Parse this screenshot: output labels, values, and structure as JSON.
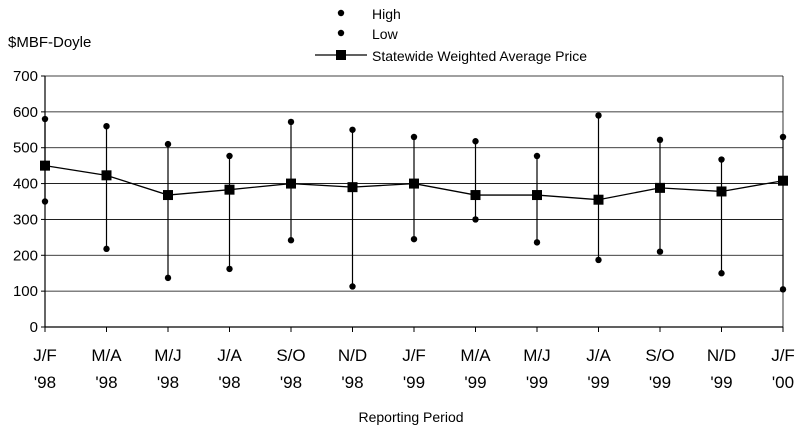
{
  "chart_data": {
    "type": "line",
    "ylabel": "$MBF-Doyle",
    "xlabel": "Reporting Period",
    "ylim": [
      0,
      700
    ],
    "yticks": [
      0,
      100,
      200,
      300,
      400,
      500,
      600,
      700
    ],
    "grid": true,
    "legend_position": "top-center",
    "categories": [
      {
        "line1": "J/F",
        "line2": "'98"
      },
      {
        "line1": "M/A",
        "line2": "'98"
      },
      {
        "line1": "M/J",
        "line2": "'98"
      },
      {
        "line1": "J/A",
        "line2": "'98"
      },
      {
        "line1": "S/O",
        "line2": "'98"
      },
      {
        "line1": "N/D",
        "line2": "'98"
      },
      {
        "line1": "J/F",
        "line2": "'99"
      },
      {
        "line1": "M/A",
        "line2": "'99"
      },
      {
        "line1": "M/J",
        "line2": "'99"
      },
      {
        "line1": "J/A",
        "line2": "'99"
      },
      {
        "line1": "S/O",
        "line2": "'99"
      },
      {
        "line1": "N/D",
        "line2": "'99"
      },
      {
        "line1": "J/F",
        "line2": "'00"
      }
    ],
    "series": [
      {
        "name": "High",
        "values": [
          580,
          560,
          510,
          477,
          572,
          550,
          530,
          518,
          477,
          590,
          522,
          467,
          530
        ]
      },
      {
        "name": "Low",
        "values": [
          350,
          218,
          137,
          162,
          242,
          113,
          245,
          300,
          236,
          187,
          210,
          150,
          105
        ]
      },
      {
        "name": "Statewide Weighted Average Price",
        "values": [
          450,
          423,
          368,
          383,
          400,
          390,
          400,
          368,
          368,
          355,
          388,
          378,
          408
        ]
      }
    ],
    "colors": {
      "axis": "#000000",
      "grid": "#000000",
      "marker": "#000000"
    }
  }
}
